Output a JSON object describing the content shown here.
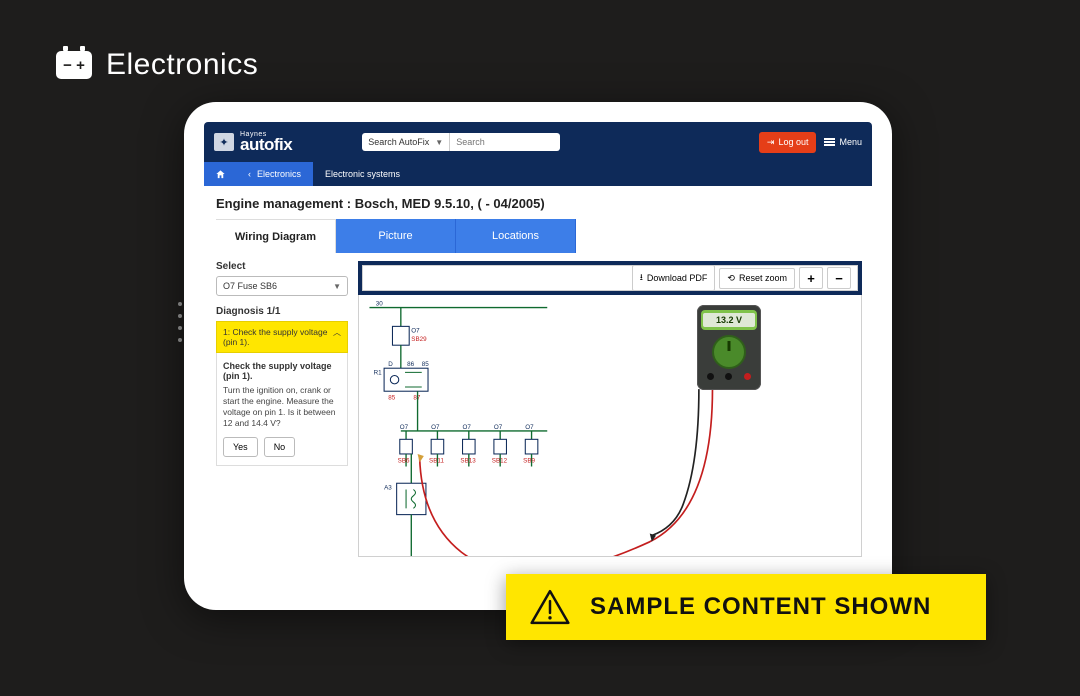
{
  "page_header": {
    "title": "Electronics"
  },
  "brand": {
    "top": "Haynes",
    "bottom": "autofix"
  },
  "search": {
    "scope_label": "Search AutoFix",
    "placeholder": "Search"
  },
  "appbar": {
    "logout": "Log out",
    "menu": "Menu"
  },
  "breadcrumbs": {
    "electronics": "Electronics",
    "elesys": "Electronic systems"
  },
  "title": "Engine management :  Bosch, MED 9.5.10, ( - 04/2005)",
  "tabs": {
    "wiring": "Wiring Diagram",
    "picture": "Picture",
    "locations": "Locations"
  },
  "select": {
    "label": "Select",
    "value": "O7  Fuse  SB6"
  },
  "diagnosis": {
    "heading": "Diagnosis 1/1",
    "acc_header": "1: Check the supply voltage (pin 1).",
    "body_title": "Check the supply voltage (pin 1).",
    "body_text": "Turn the ignition on, crank or start the engine. Measure the voltage on pin 1. Is it between 12 and 14.4 V?",
    "yes": "Yes",
    "no": "No"
  },
  "toolbar": {
    "download": "Download PDF",
    "reset": "Reset zoom",
    "plus": "+",
    "minus": "−"
  },
  "meter": {
    "reading": "13.2 V"
  },
  "banner": {
    "text": "SAMPLE CONTENT SHOWN"
  },
  "diagram": {
    "top_label": "30",
    "main_node": {
      "code": "O7",
      "sub": "SB29"
    },
    "r1_label": "R1",
    "r1_pins": [
      "D",
      "86",
      "85"
    ],
    "r1_pins2": [
      "85",
      "87"
    ],
    "fuse_row": [
      {
        "code": "O7",
        "sub": "SB6"
      },
      {
        "code": "O7",
        "sub": "SB11"
      },
      {
        "code": "O7",
        "sub": "SB13"
      },
      {
        "code": "O7",
        "sub": "SB12"
      },
      {
        "code": "O7",
        "sub": "SB9"
      }
    ],
    "a3_label": "A3",
    "colors": {
      "wire_green": "#0f6a2f",
      "label_red": "#c41e1e",
      "label_blue": "#0e2a59",
      "probe_red": "#c41e1e",
      "probe_black": "#222222"
    }
  }
}
